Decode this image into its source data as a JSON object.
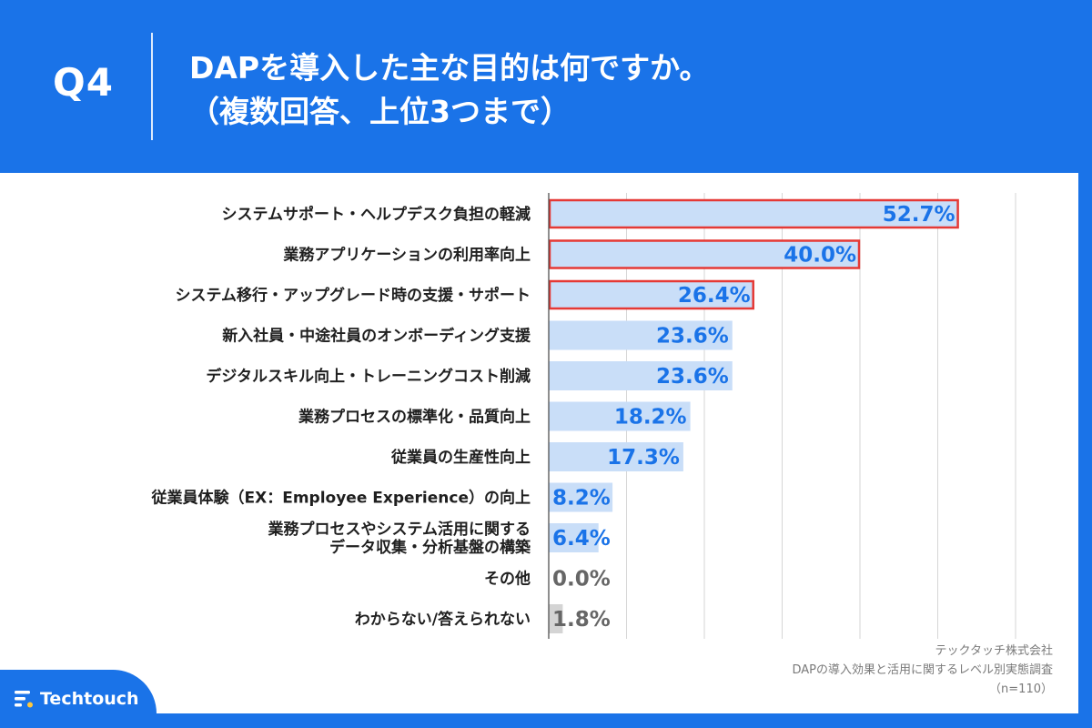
{
  "header": {
    "question": "Q4",
    "title_line1": "DAPを導入した主な目的は何ですか。",
    "title_line2": "（複数回答、上位3つまで）"
  },
  "source": {
    "company": "テックタッチ株式会社",
    "survey": "DAPの導入効果と活用に関するレベル別実態調査",
    "sample": "（n=110）"
  },
  "brand": {
    "name": "Techtouch"
  },
  "colors": {
    "background": "#1a73e8",
    "bar": "#c9def8",
    "bar_other": "#d4d4d4",
    "value_text": "#1a73e8",
    "value_text_other": "#666666",
    "highlight_border": "#e53935"
  },
  "chart_data": {
    "type": "bar",
    "orientation": "horizontal",
    "unit": "%",
    "xlim": [
      0,
      60
    ],
    "grid": true,
    "legend": "none",
    "categories": [
      [
        "システムサポート・ヘルプデスク負担の軽減"
      ],
      [
        "業務アプリケーションの利用率向上"
      ],
      [
        "システム移行・アップグレード時の支援・サポート"
      ],
      [
        "新入社員・中途社員のオンボーディング支援"
      ],
      [
        "デジタルスキル向上・トレーニングコスト削減"
      ],
      [
        "業務プロセスの標準化・品質向上"
      ],
      [
        "従業員の生産性向上"
      ],
      [
        "従業員体験（EX：Employee Experience）の向上"
      ],
      [
        "業務プロセスやシステム活用に関する",
        "データ収集・分析基盤の構築"
      ],
      [
        "その他"
      ],
      [
        "わからない/答えられない"
      ]
    ],
    "values": [
      52.7,
      40.0,
      26.4,
      23.6,
      23.6,
      18.2,
      17.3,
      8.2,
      6.4,
      0.0,
      1.8
    ],
    "value_labels": [
      "52.7%",
      "40.0%",
      "26.4%",
      "23.6%",
      "23.6%",
      "18.2%",
      "17.3%",
      "8.2%",
      "6.4%",
      "0.0%",
      "1.8%"
    ],
    "highlighted": [
      true,
      true,
      true,
      false,
      false,
      false,
      false,
      false,
      false,
      false,
      false
    ],
    "muted": [
      false,
      false,
      false,
      false,
      false,
      false,
      false,
      false,
      false,
      true,
      true
    ]
  }
}
